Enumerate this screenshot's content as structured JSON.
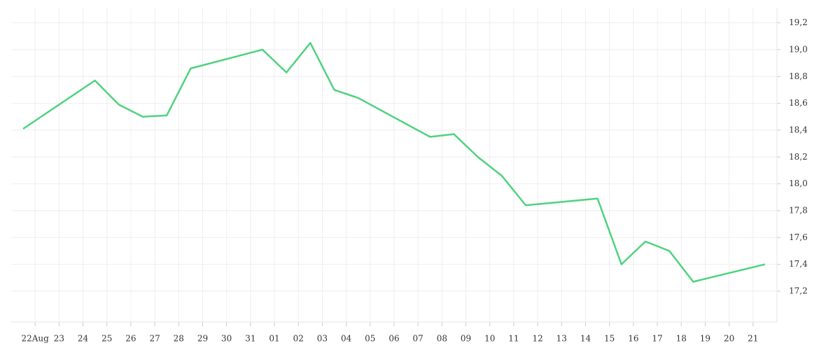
{
  "chart_data": {
    "type": "line",
    "x": [
      0,
      3,
      4,
      5,
      6,
      7,
      10,
      11,
      12,
      13,
      14,
      17,
      18,
      19,
      20,
      21,
      24,
      25,
      26,
      27,
      28,
      31
    ],
    "series": [
      {
        "color": "#4fd27f",
        "values": [
          18.41,
          18.77,
          18.59,
          18.5,
          18.51,
          18.86,
          19.0,
          18.83,
          19.05,
          18.7,
          18.64,
          18.35,
          18.37,
          18.2,
          18.06,
          17.84,
          17.89,
          17.4,
          17.57,
          17.5,
          17.27,
          17.4
        ]
      }
    ],
    "xlim": [
      -0.5,
      31.5
    ],
    "xticks": [
      {
        "value": 0.5,
        "label": "22Aug"
      },
      {
        "value": 1.5,
        "label": "23"
      },
      {
        "value": 2.5,
        "label": "24"
      },
      {
        "value": 3.5,
        "label": "25"
      },
      {
        "value": 4.5,
        "label": "26"
      },
      {
        "value": 5.5,
        "label": "27"
      },
      {
        "value": 6.5,
        "label": "28"
      },
      {
        "value": 7.5,
        "label": "29"
      },
      {
        "value": 8.5,
        "label": "30"
      },
      {
        "value": 9.5,
        "label": "31"
      },
      {
        "value": 10.5,
        "label": "01"
      },
      {
        "value": 11.5,
        "label": "02"
      },
      {
        "value": 12.5,
        "label": "03"
      },
      {
        "value": 13.5,
        "label": "04"
      },
      {
        "value": 14.5,
        "label": "05"
      },
      {
        "value": 15.5,
        "label": "06"
      },
      {
        "value": 16.5,
        "label": "07"
      },
      {
        "value": 17.5,
        "label": "08"
      },
      {
        "value": 18.5,
        "label": "09"
      },
      {
        "value": 19.5,
        "label": "10"
      },
      {
        "value": 20.5,
        "label": "11"
      },
      {
        "value": 21.5,
        "label": "12"
      },
      {
        "value": 22.5,
        "label": "13"
      },
      {
        "value": 23.5,
        "label": "14"
      },
      {
        "value": 24.5,
        "label": "15"
      },
      {
        "value": 25.5,
        "label": "16"
      },
      {
        "value": 26.5,
        "label": "17"
      },
      {
        "value": 27.5,
        "label": "18"
      },
      {
        "value": 28.5,
        "label": "19"
      },
      {
        "value": 29.5,
        "label": "20"
      },
      {
        "value": 30.5,
        "label": "21"
      }
    ],
    "ylim": [
      16.97,
      19.37
    ],
    "yticks": [
      {
        "value": 17.2,
        "label": "17,2"
      },
      {
        "value": 17.4,
        "label": "17,4"
      },
      {
        "value": 17.6,
        "label": "17,6"
      },
      {
        "value": 17.8,
        "label": "17,8"
      },
      {
        "value": 18.0,
        "label": "18,0"
      },
      {
        "value": 18.2,
        "label": "18,2"
      },
      {
        "value": 18.4,
        "label": "18,4"
      },
      {
        "value": 18.6,
        "label": "18,6"
      },
      {
        "value": 18.8,
        "label": "18,8"
      },
      {
        "value": 19.0,
        "label": "19,0"
      },
      {
        "value": 19.2,
        "label": "19,2"
      }
    ],
    "grid": true
  }
}
